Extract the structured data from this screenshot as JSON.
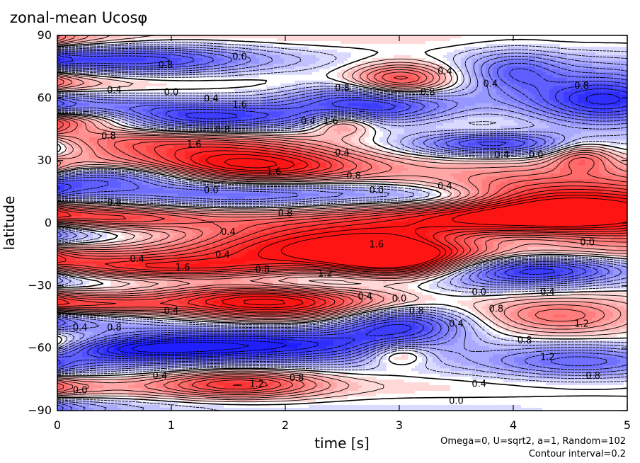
{
  "chart_data": {
    "type": "heatmap",
    "title": "zonal-mean Ucosφ",
    "xlabel": "time [s]",
    "ylabel": "latitude",
    "xlim": [
      0,
      5
    ],
    "ylim": [
      -90,
      90
    ],
    "xticks": [
      0,
      1,
      2,
      3,
      4,
      5
    ],
    "yticks": [
      90,
      60,
      30,
      0,
      -30,
      -60,
      -90
    ],
    "xtick_labels": [
      "0",
      "1",
      "2",
      "3",
      "4",
      "5"
    ],
    "ytick_labels": [
      "90",
      "60",
      "30",
      "0",
      "−30",
      "−60",
      "−90"
    ],
    "annotations": [
      "Omega=0, U=sqrt2, a=1, Random=102",
      "Contour interval=0.2"
    ],
    "contour_labels": [
      {
        "text": "0.0",
        "t": 0.2,
        "lat": -80
      },
      {
        "text": "0.4",
        "t": 0.9,
        "lat": -73
      },
      {
        "text": "1.2",
        "t": 1.75,
        "lat": -77
      },
      {
        "text": "0.8",
        "t": 2.1,
        "lat": -74
      },
      {
        "text": "0.0",
        "t": 3.5,
        "lat": -85
      },
      {
        "text": "0.4",
        "t": 3.7,
        "lat": -77
      },
      {
        "text": "1.2",
        "t": 4.3,
        "lat": -64
      },
      {
        "text": "0.8",
        "t": 4.7,
        "lat": -73
      },
      {
        "text": "0.4",
        "t": 0.2,
        "lat": -50
      },
      {
        "text": "0.8",
        "t": 0.5,
        "lat": -50
      },
      {
        "text": "0.4",
        "t": 1.0,
        "lat": -42
      },
      {
        "text": "0.4",
        "t": 3.5,
        "lat": -48
      },
      {
        "text": "0.8",
        "t": 3.85,
        "lat": -41
      },
      {
        "text": "0.8",
        "t": 4.1,
        "lat": -56
      },
      {
        "text": "1.2",
        "t": 4.6,
        "lat": -48
      },
      {
        "text": "0.0",
        "t": 3.0,
        "lat": -36
      },
      {
        "text": "0.8",
        "t": 3.15,
        "lat": -42
      },
      {
        "text": "0.0",
        "t": 3.7,
        "lat": -33
      },
      {
        "text": "0.4",
        "t": 4.3,
        "lat": -33
      },
      {
        "text": "0.4",
        "t": 2.7,
        "lat": -35
      },
      {
        "text": "0.8",
        "t": 1.8,
        "lat": -22
      },
      {
        "text": "1.6",
        "t": 1.1,
        "lat": -21
      },
      {
        "text": "0.4",
        "t": 0.7,
        "lat": -17
      },
      {
        "text": "0.4",
        "t": 1.45,
        "lat": -15
      },
      {
        "text": "1.2",
        "t": 2.35,
        "lat": -24
      },
      {
        "text": "1.6",
        "t": 2.8,
        "lat": -10
      },
      {
        "text": "0.0",
        "t": 4.65,
        "lat": -9
      },
      {
        "text": "0.4",
        "t": 1.5,
        "lat": -4
      },
      {
        "text": "0.8",
        "t": 0.5,
        "lat": 10
      },
      {
        "text": "0.8",
        "t": 2.0,
        "lat": 5
      },
      {
        "text": "0.0",
        "t": 1.35,
        "lat": 16
      },
      {
        "text": "0.0",
        "t": 2.8,
        "lat": 16
      },
      {
        "text": "0.8",
        "t": 2.6,
        "lat": 23
      },
      {
        "text": "0.4",
        "t": 3.4,
        "lat": 18
      },
      {
        "text": "1.6",
        "t": 1.9,
        "lat": 25
      },
      {
        "text": "0.4",
        "t": 2.5,
        "lat": 34
      },
      {
        "text": "1.6",
        "t": 1.2,
        "lat": 38
      },
      {
        "text": "0.8",
        "t": 0.45,
        "lat": 42
      },
      {
        "text": "0.4",
        "t": 3.9,
        "lat": 33
      },
      {
        "text": "0.0",
        "t": 4.2,
        "lat": 33
      },
      {
        "text": "1.6",
        "t": 2.4,
        "lat": 49
      },
      {
        "text": "0.4",
        "t": 2.2,
        "lat": 49
      },
      {
        "text": "1.6",
        "t": 1.6,
        "lat": 57
      },
      {
        "text": "0.4",
        "t": 1.35,
        "lat": 60
      },
      {
        "text": "0.8",
        "t": 1.45,
        "lat": 45
      },
      {
        "text": "0.0",
        "t": 1.0,
        "lat": 63
      },
      {
        "text": "0.4",
        "t": 0.5,
        "lat": 64
      },
      {
        "text": "0.8",
        "t": 2.5,
        "lat": 65
      },
      {
        "text": "0.8",
        "t": 3.25,
        "lat": 63
      },
      {
        "text": "0.4",
        "t": 3.4,
        "lat": 73
      },
      {
        "text": "0.4",
        "t": 3.8,
        "lat": 67
      },
      {
        "text": "0.8",
        "t": 4.6,
        "lat": 66
      },
      {
        "text": "0.0",
        "t": 1.6,
        "lat": 80
      },
      {
        "text": "0.8",
        "t": 0.95,
        "lat": 76
      }
    ]
  },
  "colors": {
    "positive": "#ff0000",
    "negative": "#0000ff",
    "zero": "#ffffff",
    "axis": "#000000"
  }
}
